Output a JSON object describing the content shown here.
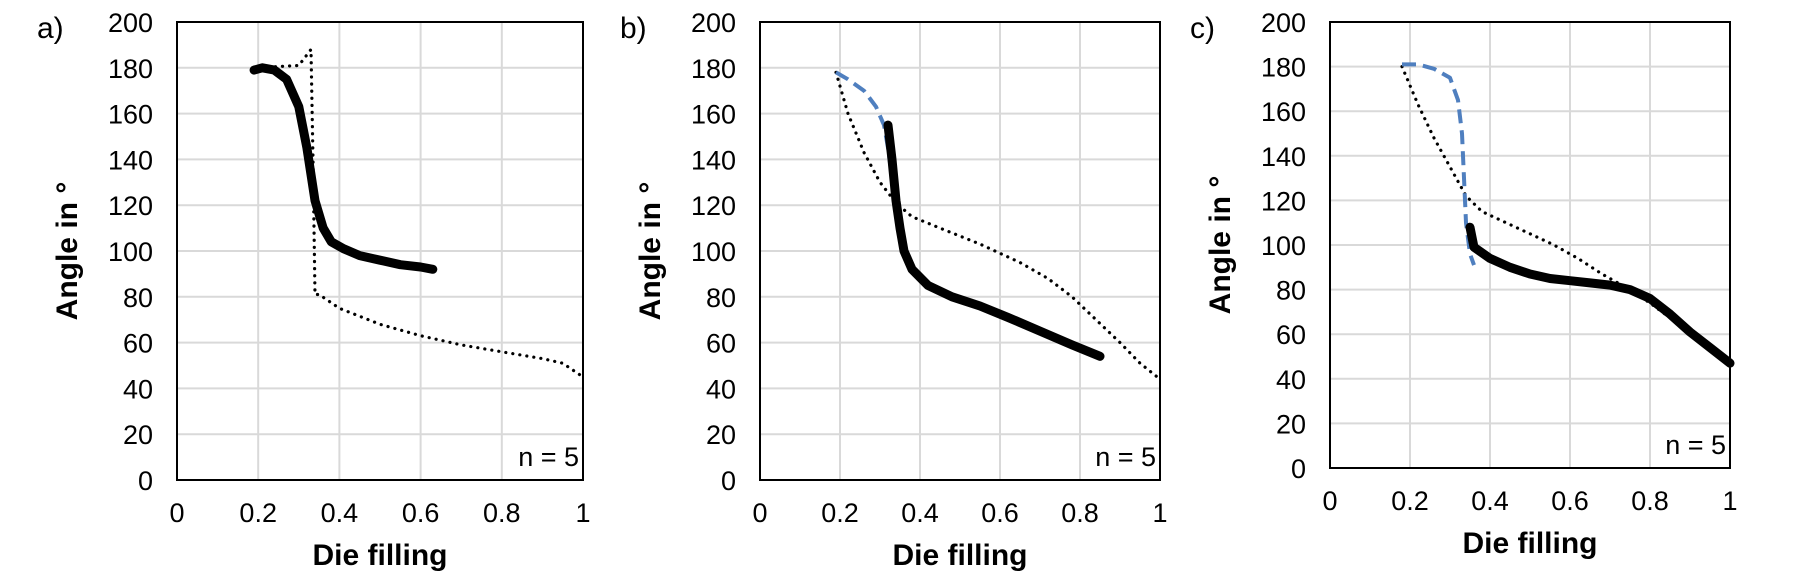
{
  "chart_data": [
    {
      "type": "line",
      "panel_label": "a)",
      "xlabel": "Die filling",
      "ylabel": "Angle in °",
      "xlim": [
        0,
        1
      ],
      "ylim": [
        0,
        200
      ],
      "x_ticks": [
        "0",
        "0.2",
        "0.4",
        "0.6",
        "0.8",
        "1"
      ],
      "y_ticks": [
        "0",
        "20",
        "40",
        "60",
        "80",
        "100",
        "120",
        "140",
        "160",
        "180",
        "200"
      ],
      "grid": true,
      "annotation": "n = 5",
      "series": [
        {
          "style": "dotted",
          "color": "#000000",
          "x": [
            0.19,
            0.3,
            0.33,
            0.335,
            0.34,
            0.35,
            0.4,
            0.5,
            0.6,
            0.7,
            0.8,
            0.9,
            0.95,
            1.0
          ],
          "y": [
            180,
            181,
            188,
            140,
            81,
            81,
            75,
            68,
            63,
            59,
            56,
            53,
            51,
            45
          ]
        },
        {
          "style": "thick",
          "color": "#000000",
          "x": [
            0.19,
            0.21,
            0.24,
            0.27,
            0.3,
            0.32,
            0.34,
            0.36,
            0.38,
            0.41,
            0.45,
            0.5,
            0.55,
            0.6,
            0.63
          ],
          "y": [
            179,
            180,
            179,
            175,
            163,
            145,
            122,
            110,
            104,
            101,
            98,
            96,
            94,
            93,
            92
          ]
        }
      ]
    },
    {
      "type": "line",
      "panel_label": "b)",
      "xlabel": "Die filling",
      "ylabel": "Angle in °",
      "xlim": [
        0,
        1
      ],
      "ylim": [
        0,
        200
      ],
      "x_ticks": [
        "0",
        "0.2",
        "0.4",
        "0.6",
        "0.8",
        "1"
      ],
      "y_ticks": [
        "0",
        "20",
        "40",
        "60",
        "80",
        "100",
        "120",
        "140",
        "160",
        "180",
        "200"
      ],
      "grid": true,
      "annotation": "n = 5",
      "series": [
        {
          "style": "dotted",
          "color": "#000000",
          "x": [
            0.19,
            0.22,
            0.26,
            0.3,
            0.34,
            0.38,
            0.45,
            0.55,
            0.65,
            0.72,
            0.78,
            0.84,
            0.9,
            0.95,
            1.0
          ],
          "y": [
            178,
            160,
            143,
            130,
            121,
            115,
            110,
            103,
            95,
            88,
            80,
            70,
            60,
            51,
            44
          ]
        },
        {
          "style": "dashed",
          "color": "#4f7fbf",
          "x": [
            0.19,
            0.22,
            0.26,
            0.29,
            0.31,
            0.32,
            0.33,
            0.335,
            0.34
          ],
          "y": [
            178,
            175,
            170,
            163,
            155,
            145,
            132,
            125,
            120
          ]
        },
        {
          "style": "thick",
          "color": "#000000",
          "x": [
            0.32,
            0.33,
            0.34,
            0.35,
            0.36,
            0.38,
            0.42,
            0.48,
            0.55,
            0.62,
            0.7,
            0.78,
            0.85
          ],
          "y": [
            155,
            140,
            122,
            110,
            100,
            92,
            85,
            80,
            76,
            71,
            65,
            59,
            54
          ]
        }
      ]
    },
    {
      "type": "line",
      "panel_label": "c)",
      "xlabel": "Die filling",
      "ylabel": "Angle in °",
      "xlim": [
        0,
        1
      ],
      "ylim": [
        0,
        200
      ],
      "x_ticks": [
        "0",
        "0.2",
        "0.4",
        "0.6",
        "0.8",
        "1"
      ],
      "y_ticks": [
        "0",
        "20",
        "40",
        "60",
        "80",
        "100",
        "120",
        "140",
        "160",
        "180",
        "200"
      ],
      "grid": true,
      "annotation": "n = 5",
      "series": [
        {
          "style": "dotted",
          "color": "#000000",
          "x": [
            0.18,
            0.22,
            0.26,
            0.3,
            0.34,
            0.38,
            0.44,
            0.5,
            0.56,
            0.62,
            0.68,
            0.74,
            0.8,
            0.86,
            0.92,
            1.0
          ],
          "y": [
            180,
            163,
            148,
            135,
            122,
            115,
            110,
            105,
            100,
            94,
            87,
            81,
            74,
            66,
            57,
            46
          ]
        },
        {
          "style": "dashed",
          "color": "#4f7fbf",
          "x": [
            0.18,
            0.22,
            0.26,
            0.3,
            0.32,
            0.33,
            0.335,
            0.34,
            0.35,
            0.36
          ],
          "y": [
            181,
            181,
            179,
            175,
            165,
            150,
            130,
            110,
            96,
            91
          ]
        },
        {
          "style": "thick",
          "color": "#000000",
          "x": [
            0.35,
            0.36,
            0.4,
            0.45,
            0.5,
            0.55,
            0.6,
            0.65,
            0.7,
            0.75,
            0.8,
            0.85,
            0.9,
            0.95,
            1.0
          ],
          "y": [
            108,
            99,
            94,
            90,
            87,
            85,
            84,
            83,
            82,
            80,
            76,
            69,
            61,
            54,
            47
          ]
        }
      ]
    }
  ]
}
